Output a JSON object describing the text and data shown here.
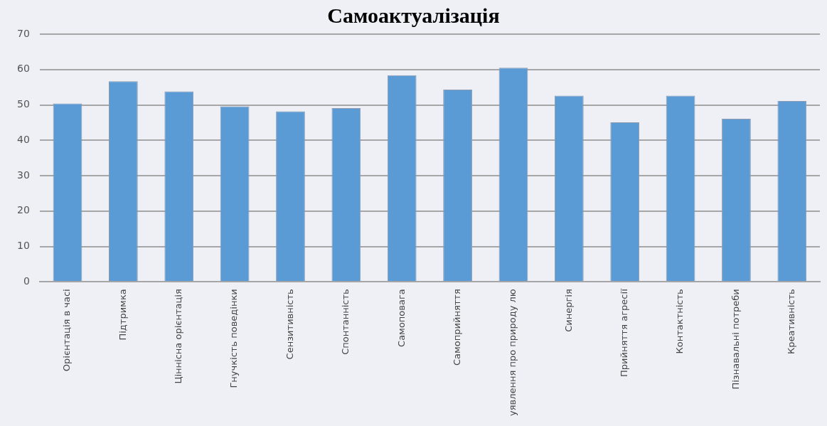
{
  "chart_data": {
    "type": "bar",
    "title": "Самоактуалізація",
    "categories": [
      "Орієнтація в часі",
      "Підтримка",
      "Ціннісна орієнтація",
      "Гнучкість поведінки",
      "Сензитивність",
      "Спонтанність",
      "Самоповага",
      "Самоприйняття",
      "уявлення про природу лю",
      "Синергія",
      "Прийняття агресії",
      "Контактність",
      "Пізнавальні потреби",
      "Креативність"
    ],
    "values": [
      50.4,
      56.7,
      53.8,
      49.6,
      48.2,
      49.1,
      58.4,
      54.3,
      60.5,
      52.6,
      45.1,
      52.6,
      46.1,
      51.1
    ],
    "color": "#5b9bd5",
    "ylim": [
      0,
      70
    ],
    "yticks": [
      0,
      10,
      20,
      30,
      40,
      50,
      60,
      70
    ],
    "grid": "y",
    "legend": false
  }
}
